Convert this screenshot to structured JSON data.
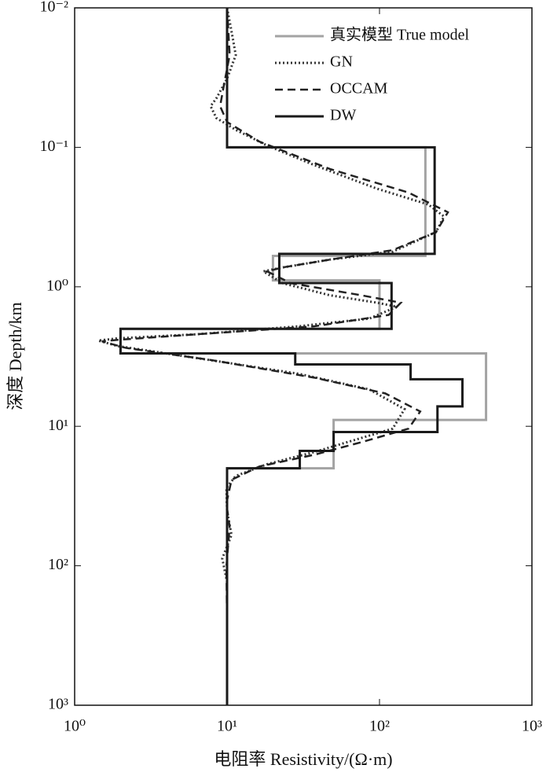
{
  "chart_data": {
    "type": "line",
    "x_label": "电阻率 Resistivity/(Ω·m)",
    "y_label": "深度 Depth/km",
    "xlim": [
      1,
      1000
    ],
    "ylim": [
      0.01,
      1000
    ],
    "xlog": true,
    "ylog": true,
    "yreverse": true,
    "xticks": [
      {
        "value": 1,
        "label": "10⁰"
      },
      {
        "value": 10,
        "label": "10¹"
      },
      {
        "value": 100,
        "label": "10²"
      },
      {
        "value": 1000,
        "label": "10³"
      }
    ],
    "yticks": [
      {
        "value": 0.01,
        "label": "10⁻²"
      },
      {
        "value": 0.1,
        "label": "10⁻¹"
      },
      {
        "value": 1,
        "label": "10⁰"
      },
      {
        "value": 10,
        "label": "10¹"
      },
      {
        "value": 100,
        "label": "10²"
      },
      {
        "value": 1000,
        "label": "10³"
      }
    ],
    "legend": "upper right",
    "series": [
      {
        "name": "真实模型 True model",
        "color": "#a3a3a3",
        "style": "solid",
        "x": [
          10,
          10,
          200,
          200,
          20,
          20,
          100,
          100,
          2,
          2,
          500,
          500,
          50,
          50,
          10,
          10
        ],
        "values": [
          0.01,
          0.1,
          0.1,
          0.6,
          0.6,
          0.9,
          0.9,
          2,
          2,
          3,
          3,
          9,
          9,
          20,
          20,
          1000
        ]
      },
      {
        "name": "GN",
        "color": "#333333",
        "style": "dotted",
        "x": [
          10,
          10.7,
          11.4,
          10,
          8.5,
          7.8,
          8.5,
          11.4,
          18.3,
          37.3,
          96.5,
          209,
          265,
          235,
          122,
          47.3,
          23.2,
          17.3,
          23.2,
          47.3,
          96.5,
          130,
          85.7,
          29.4,
          6.3,
          1.92,
          1.43,
          1.92,
          6.3,
          29.4,
          85.7,
          146,
          122,
          67.6,
          37.3,
          18.3,
          11.4,
          9.9,
          10,
          10.7,
          9.3,
          10,
          10,
          10
        ],
        "values": [
          0.01,
          0.0148,
          0.0218,
          0.0322,
          0.0446,
          0.0507,
          0.0616,
          0.0749,
          0.097,
          0.134,
          0.198,
          0.257,
          0.313,
          0.405,
          0.56,
          0.638,
          0.726,
          0.775,
          0.942,
          1.15,
          1.3,
          1.39,
          1.69,
          1.92,
          2.19,
          2.34,
          2.43,
          2.66,
          3.24,
          4.2,
          5.44,
          7.53,
          10.4,
          12.6,
          15.3,
          18.7,
          22.7,
          27.6,
          40.7,
          60.1,
          88.7,
          131,
          286,
          1000
        ]
      },
      {
        "name": "OCCAM",
        "color": "#222222",
        "style": "dashed",
        "x": [
          10,
          10.4,
          9.5,
          9.0,
          10,
          16.3,
          47.3,
          155,
          281,
          235,
          122,
          47.3,
          23.2,
          18.3,
          26.2,
          76,
          138,
          115,
          37.3,
          6.3,
          1.92,
          1.51,
          2.16,
          8.0,
          37.3,
          109,
          185,
          155,
          76,
          37.3,
          16.3,
          10.7,
          9.9,
          10.4,
          9.9,
          10,
          10
        ],
        "values": [
          0.01,
          0.0218,
          0.0366,
          0.0507,
          0.0658,
          0.091,
          0.143,
          0.211,
          0.292,
          0.405,
          0.546,
          0.638,
          0.726,
          0.775,
          0.942,
          1.15,
          1.3,
          1.59,
          1.92,
          2.19,
          2.4,
          2.46,
          2.74,
          3.36,
          4.48,
          5.81,
          7.83,
          10.4,
          13.0,
          16.0,
          19.4,
          24.2,
          35.7,
          52.7,
          101,
          286,
          1000
        ]
      },
      {
        "name": "DW",
        "color": "#1a1a1a",
        "style": "solid",
        "x": [
          10,
          10,
          230,
          230,
          22,
          22,
          120,
          120,
          2,
          2,
          28,
          28,
          160,
          160,
          350,
          350,
          240,
          240,
          50,
          50,
          30,
          30,
          10,
          10
        ],
        "values": [
          0.01,
          0.1,
          0.1,
          0.58,
          0.58,
          0.94,
          0.94,
          2,
          2,
          3,
          3,
          3.6,
          3.6,
          4.6,
          4.6,
          7.2,
          7.2,
          11,
          11,
          15,
          15,
          20,
          20,
          1000
        ]
      }
    ]
  }
}
